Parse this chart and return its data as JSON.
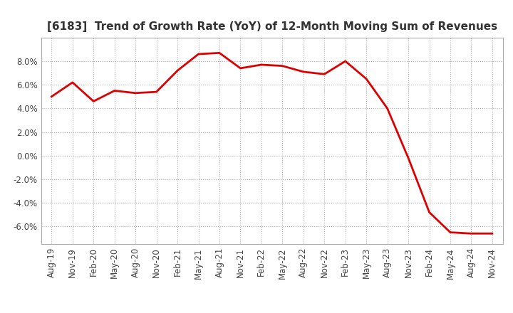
{
  "title": "[6183]  Trend of Growth Rate (YoY) of 12-Month Moving Sum of Revenues",
  "x_labels": [
    "Aug-19",
    "Nov-19",
    "Feb-20",
    "May-20",
    "Aug-20",
    "Nov-20",
    "Feb-21",
    "May-21",
    "Aug-21",
    "Nov-21",
    "Feb-22",
    "May-22",
    "Aug-22",
    "Nov-22",
    "Feb-23",
    "May-23",
    "Aug-23",
    "Nov-23",
    "Feb-24",
    "May-24",
    "Aug-24",
    "Nov-24"
  ],
  "y_values": [
    5.0,
    6.2,
    4.6,
    5.5,
    5.3,
    5.4,
    7.2,
    8.6,
    8.7,
    7.4,
    7.7,
    7.6,
    7.1,
    6.9,
    8.0,
    6.5,
    4.0,
    -0.2,
    -4.8,
    -6.5,
    -6.6,
    -6.6
  ],
  "line_color": "#dd0000",
  "ylim": [
    -7.5,
    10.0
  ],
  "yticks": [
    -6.0,
    -4.0,
    -2.0,
    0.0,
    2.0,
    4.0,
    6.0,
    8.0
  ],
  "grid_color": "#aaaaaa",
  "background_color": "#ffffff",
  "plot_bg_color": "#ffffff",
  "title_fontsize": 11,
  "tick_fontsize": 8.5,
  "title_color": "#333333",
  "line_width": 2.0
}
